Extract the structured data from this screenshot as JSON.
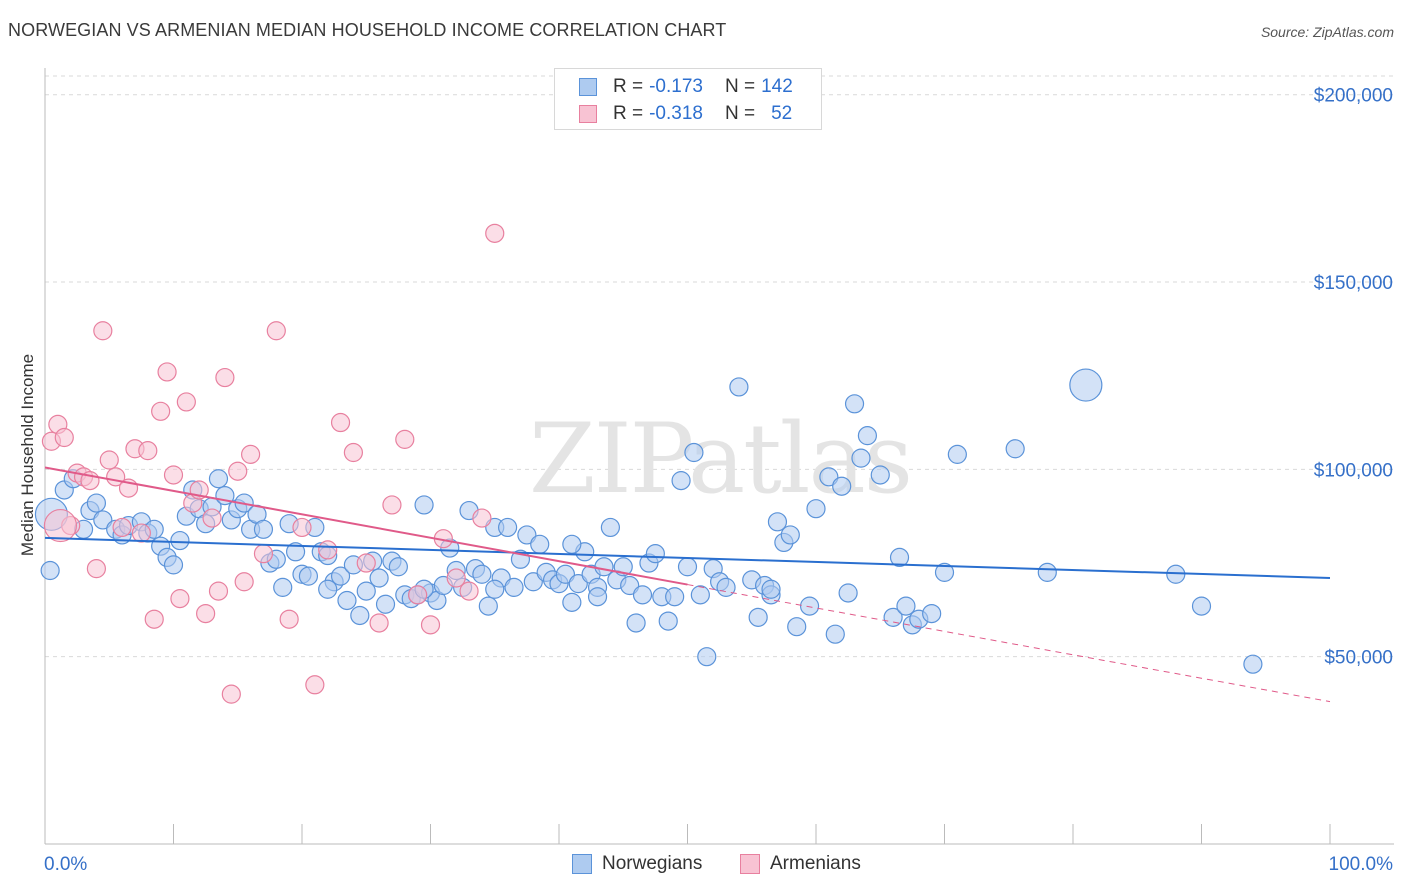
{
  "title": "NORWEGIAN VS ARMENIAN MEDIAN HOUSEHOLD INCOME CORRELATION CHART",
  "source": "Source: ZipAtlas.com",
  "watermark": "ZIPatlas",
  "legend": {
    "rows": [
      {
        "r_label": "R =",
        "r_value": "-0.173",
        "n_label": "N =",
        "n_value": "142"
      },
      {
        "r_label": "R =",
        "r_value": "-0.318",
        "n_label": "N =",
        "n_value": "52"
      }
    ],
    "series_names": [
      "Norwegians",
      "Armenians"
    ]
  },
  "colors": {
    "blue_fill": "#aecbf0",
    "blue_stroke": "#5b93d9",
    "blue_line": "#2a6fcf",
    "pink_fill": "#f8c3d3",
    "pink_stroke": "#e8809f",
    "pink_line": "#e05a89",
    "axis_text": "#3570c8",
    "grid": "#d9d9d9"
  },
  "chart_data": {
    "type": "scatter",
    "title": "NORWEGIAN VS ARMENIAN MEDIAN HOUSEHOLD INCOME CORRELATION CHART",
    "xlabel": "",
    "ylabel": "Median Household Income",
    "xlim": [
      0,
      100
    ],
    "ylim": [
      0,
      205000
    ],
    "x_tick_labels": [
      "0.0%",
      "100.0%"
    ],
    "y_ticks": [
      50000,
      100000,
      150000,
      200000
    ],
    "y_tick_labels": [
      "$50,000",
      "$100,000",
      "$150,000",
      "$200,000"
    ],
    "grid": true,
    "series": [
      {
        "name": "Norwegians",
        "color": "blue",
        "r": -0.173,
        "n": 142,
        "trend": {
          "x": [
            0,
            100
          ],
          "y": [
            81700,
            71000
          ],
          "dashed_to": null
        },
        "points": [
          [
            0.5,
            88000
          ],
          [
            1.5,
            94500
          ],
          [
            2.2,
            97500
          ],
          [
            3.5,
            89000
          ],
          [
            4,
            91000
          ],
          [
            4.5,
            86500
          ],
          [
            5.5,
            84000
          ],
          [
            6,
            82500
          ],
          [
            6.5,
            85000
          ],
          [
            7.5,
            86000
          ],
          [
            8,
            83000
          ],
          [
            8.5,
            84000
          ],
          [
            9,
            79500
          ],
          [
            9.5,
            76500
          ],
          [
            10,
            74500
          ],
          [
            10.5,
            81000
          ],
          [
            11,
            87500
          ],
          [
            11.5,
            94500
          ],
          [
            12,
            89500
          ],
          [
            12.5,
            85500
          ],
          [
            13,
            90000
          ],
          [
            13.5,
            97500
          ],
          [
            14,
            93000
          ],
          [
            14.5,
            86500
          ],
          [
            15,
            89500
          ],
          [
            15.5,
            91000
          ],
          [
            16,
            84000
          ],
          [
            16.5,
            88000
          ],
          [
            17,
            84000
          ],
          [
            17.5,
            75000
          ],
          [
            18,
            76000
          ],
          [
            18.5,
            68500
          ],
          [
            19,
            85500
          ],
          [
            19.5,
            78000
          ],
          [
            20,
            72000
          ],
          [
            20.5,
            71500
          ],
          [
            21,
            84500
          ],
          [
            21.5,
            78000
          ],
          [
            22,
            77000
          ],
          [
            22.5,
            70000
          ],
          [
            23,
            71500
          ],
          [
            23.5,
            65000
          ],
          [
            24,
            74500
          ],
          [
            24.5,
            61000
          ],
          [
            25,
            67500
          ],
          [
            25.5,
            75500
          ],
          [
            26,
            71000
          ],
          [
            26.5,
            64000
          ],
          [
            27,
            75500
          ],
          [
            27.5,
            74000
          ],
          [
            28,
            66500
          ],
          [
            28.5,
            65500
          ],
          [
            29,
            66500
          ],
          [
            29.5,
            90500
          ],
          [
            30,
            67000
          ],
          [
            30.5,
            65000
          ],
          [
            31,
            69000
          ],
          [
            31.5,
            79000
          ],
          [
            32,
            73000
          ],
          [
            32.5,
            68500
          ],
          [
            33,
            89000
          ],
          [
            33.5,
            73500
          ],
          [
            34,
            72000
          ],
          [
            34.5,
            63500
          ],
          [
            35,
            84500
          ],
          [
            35.5,
            71000
          ],
          [
            36,
            84500
          ],
          [
            36.5,
            68500
          ],
          [
            37,
            76000
          ],
          [
            37.5,
            82500
          ],
          [
            38,
            70000
          ],
          [
            38.5,
            80000
          ],
          [
            39,
            72500
          ],
          [
            39.5,
            70500
          ],
          [
            40,
            69500
          ],
          [
            40.5,
            72000
          ],
          [
            41,
            64500
          ],
          [
            41.5,
            69500
          ],
          [
            42,
            78000
          ],
          [
            42.5,
            72000
          ],
          [
            43,
            68500
          ],
          [
            43.5,
            74000
          ],
          [
            44,
            84500
          ],
          [
            44.5,
            70500
          ],
          [
            45,
            74000
          ],
          [
            45.5,
            69000
          ],
          [
            46,
            59000
          ],
          [
            46.5,
            66500
          ],
          [
            47,
            75000
          ],
          [
            47.5,
            77500
          ],
          [
            48,
            66000
          ],
          [
            48.5,
            59500
          ],
          [
            49,
            66000
          ],
          [
            49.5,
            97000
          ],
          [
            50,
            74000
          ],
          [
            50.5,
            104500
          ],
          [
            51,
            66500
          ],
          [
            51.5,
            50000
          ],
          [
            52,
            73500
          ],
          [
            52.5,
            70000
          ],
          [
            53,
            68500
          ],
          [
            54,
            122000
          ],
          [
            55,
            70500
          ],
          [
            55.5,
            60500
          ],
          [
            56,
            69000
          ],
          [
            56.5,
            66500
          ],
          [
            57,
            86000
          ],
          [
            57.5,
            80500
          ],
          [
            58,
            82500
          ],
          [
            58.5,
            58000
          ],
          [
            59.5,
            63500
          ],
          [
            60,
            89500
          ],
          [
            61,
            98000
          ],
          [
            61.5,
            56000
          ],
          [
            62,
            95500
          ],
          [
            62.5,
            67000
          ],
          [
            63,
            117500
          ],
          [
            63.5,
            103000
          ],
          [
            64,
            109000
          ],
          [
            65,
            98500
          ],
          [
            66,
            60500
          ],
          [
            66.5,
            76500
          ],
          [
            67,
            63500
          ],
          [
            67.5,
            58500
          ],
          [
            68,
            60000
          ],
          [
            69,
            61500
          ],
          [
            70,
            72500
          ],
          [
            71,
            104000
          ],
          [
            75.5,
            105500
          ],
          [
            78,
            72500
          ],
          [
            81,
            122500
          ],
          [
            88,
            72000
          ],
          [
            90,
            63500
          ],
          [
            94,
            48000
          ],
          [
            0.4,
            73000
          ],
          [
            3,
            84000
          ],
          [
            22,
            68000
          ],
          [
            35,
            68000
          ],
          [
            43,
            66000
          ],
          [
            56.5,
            68000
          ],
          [
            41,
            80000
          ],
          [
            29.5,
            68000
          ]
        ]
      },
      {
        "name": "Armenians",
        "color": "pink",
        "r": -0.318,
        "n": 52,
        "trend": {
          "x": [
            0,
            100
          ],
          "y": [
            100500,
            38000
          ],
          "dashed_from": 50
        },
        "points": [
          [
            0.5,
            107500
          ],
          [
            1,
            112000
          ],
          [
            1.5,
            108500
          ],
          [
            2,
            85000
          ],
          [
            2.5,
            99000
          ],
          [
            3,
            98000
          ],
          [
            3.5,
            97000
          ],
          [
            4,
            73500
          ],
          [
            4.5,
            137000
          ],
          [
            5,
            102500
          ],
          [
            5.5,
            98000
          ],
          [
            6,
            84500
          ],
          [
            7,
            105500
          ],
          [
            7.5,
            83000
          ],
          [
            8,
            105000
          ],
          [
            8.5,
            60000
          ],
          [
            9,
            115500
          ],
          [
            9.5,
            126000
          ],
          [
            10,
            98500
          ],
          [
            10.5,
            65500
          ],
          [
            11,
            118000
          ],
          [
            11.5,
            91000
          ],
          [
            12,
            94500
          ],
          [
            12.5,
            61500
          ],
          [
            13,
            87000
          ],
          [
            13.5,
            67500
          ],
          [
            14,
            124500
          ],
          [
            14.5,
            40000
          ],
          [
            15,
            99500
          ],
          [
            15.5,
            70000
          ],
          [
            16,
            104000
          ],
          [
            17,
            77500
          ],
          [
            18,
            137000
          ],
          [
            19,
            60000
          ],
          [
            20,
            84500
          ],
          [
            21,
            42500
          ],
          [
            22,
            78500
          ],
          [
            23,
            112500
          ],
          [
            24,
            104500
          ],
          [
            25,
            75000
          ],
          [
            26,
            59000
          ],
          [
            27,
            90500
          ],
          [
            28,
            108000
          ],
          [
            29,
            66500
          ],
          [
            30,
            58500
          ],
          [
            31,
            81500
          ],
          [
            32,
            71000
          ],
          [
            33,
            67500
          ],
          [
            34,
            87000
          ],
          [
            35,
            163000
          ],
          [
            6.5,
            95000
          ],
          [
            1.2,
            85000
          ]
        ]
      }
    ]
  }
}
